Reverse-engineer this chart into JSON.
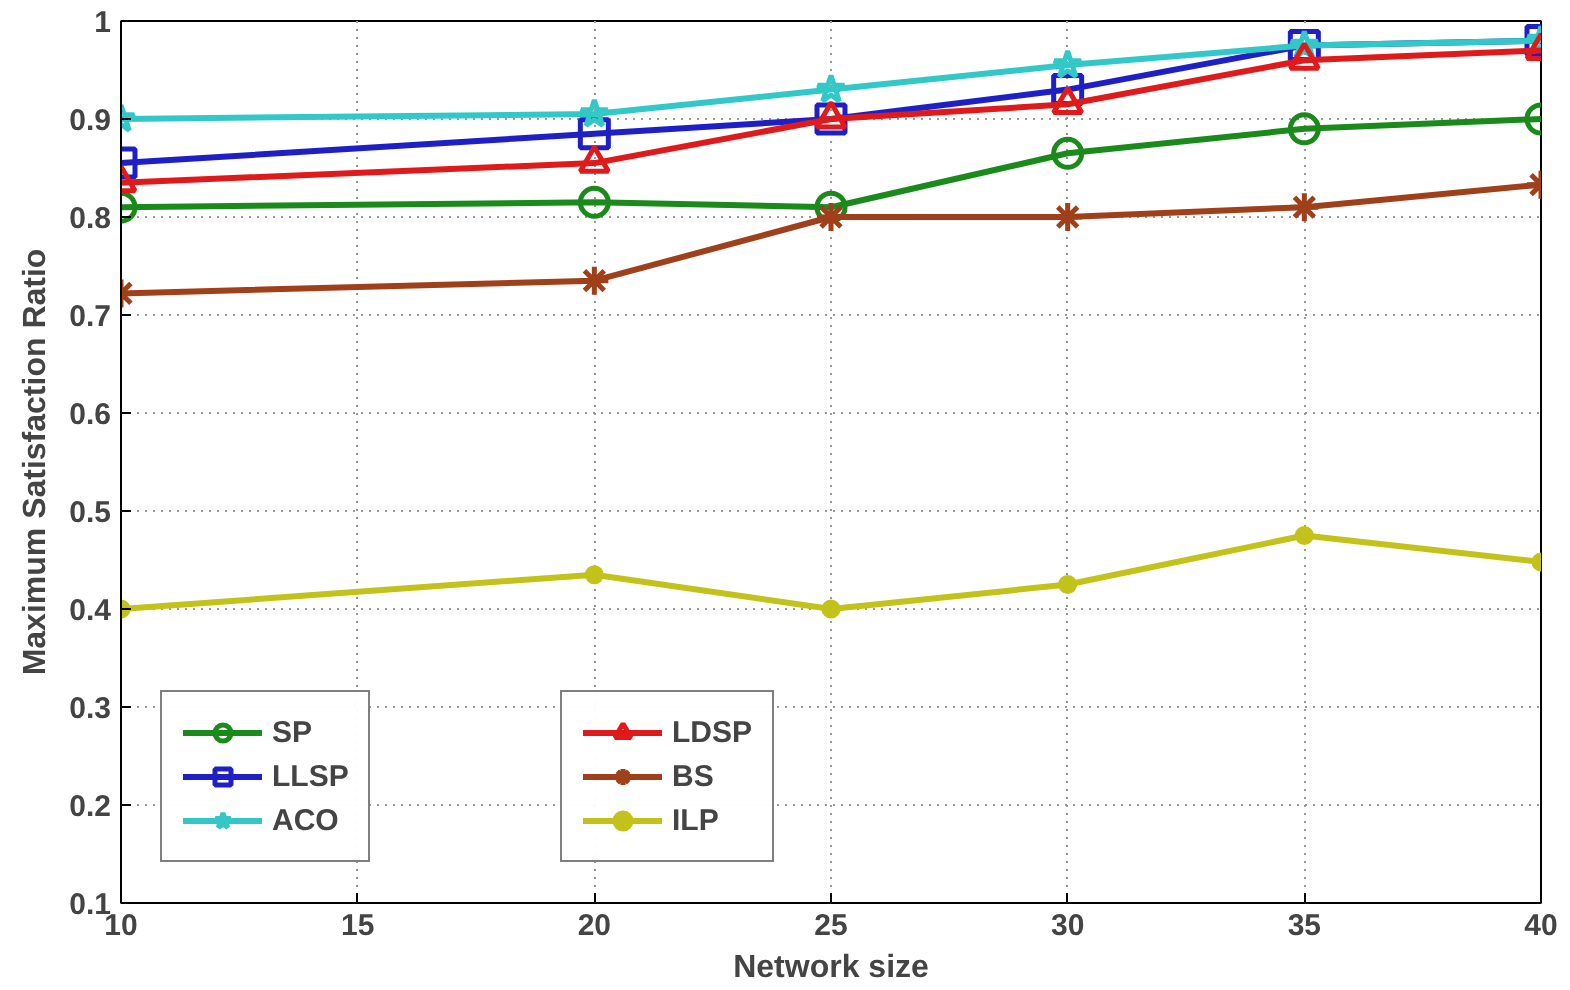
{
  "chart_data": {
    "type": "line",
    "xlabel": "Network size",
    "ylabel": "Maximum Satisfaction Ratio",
    "x": [
      10,
      20,
      25,
      30,
      35,
      40
    ],
    "series": [
      {
        "name": "SP",
        "color": "#1a8a1a",
        "marker": "circle",
        "values": [
          0.81,
          0.815,
          0.81,
          0.865,
          0.89,
          0.9
        ]
      },
      {
        "name": "LLSP",
        "color": "#1f1fc8",
        "marker": "square",
        "values": [
          0.855,
          0.885,
          0.9,
          0.93,
          0.975,
          0.98
        ]
      },
      {
        "name": "ACO",
        "color": "#33c8c8",
        "marker": "star",
        "values": [
          0.9,
          0.905,
          0.93,
          0.955,
          0.975,
          0.98
        ]
      },
      {
        "name": "LDSP",
        "color": "#e01a1a",
        "marker": "triangle",
        "values": [
          0.835,
          0.855,
          0.9,
          0.915,
          0.96,
          0.97
        ]
      },
      {
        "name": "BS",
        "color": "#a0401a",
        "marker": "cross",
        "values": [
          0.722,
          0.735,
          0.8,
          0.8,
          0.81,
          0.833
        ]
      },
      {
        "name": "ILP",
        "color": "#c2c21a",
        "marker": "circle",
        "values": [
          0.4,
          0.435,
          0.4,
          0.425,
          0.475,
          0.448
        ]
      }
    ],
    "xlim": [
      10,
      40
    ],
    "xticks": [
      10,
      15,
      20,
      25,
      30,
      35,
      40
    ],
    "ylim": [
      0.1,
      1
    ],
    "yticks": [
      0.1,
      0.2,
      0.3,
      0.4,
      0.5,
      0.6,
      0.7,
      0.8,
      0.9,
      1
    ],
    "grid": true,
    "legend": "bottom left"
  }
}
